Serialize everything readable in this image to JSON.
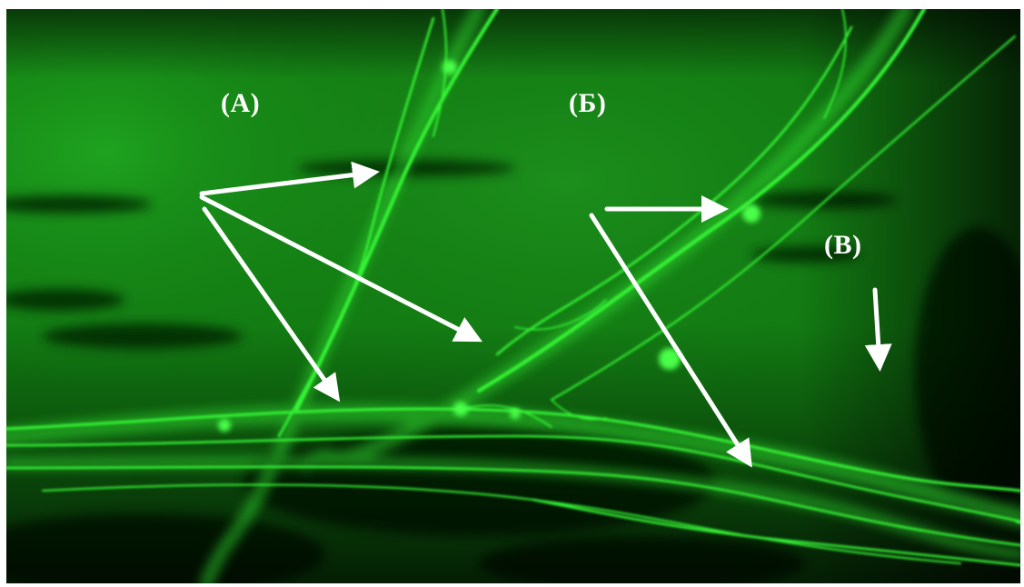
{
  "figure": {
    "labels": {
      "a": "(А)",
      "b": "(Б)",
      "v": "(В)"
    },
    "colors": {
      "fiber": "#35f535",
      "tissue_dark": "#0a2e0a",
      "tissue_mid": "#127a12",
      "tissue_bright": "#1e9b1e",
      "arrow": "#ffffff"
    }
  }
}
